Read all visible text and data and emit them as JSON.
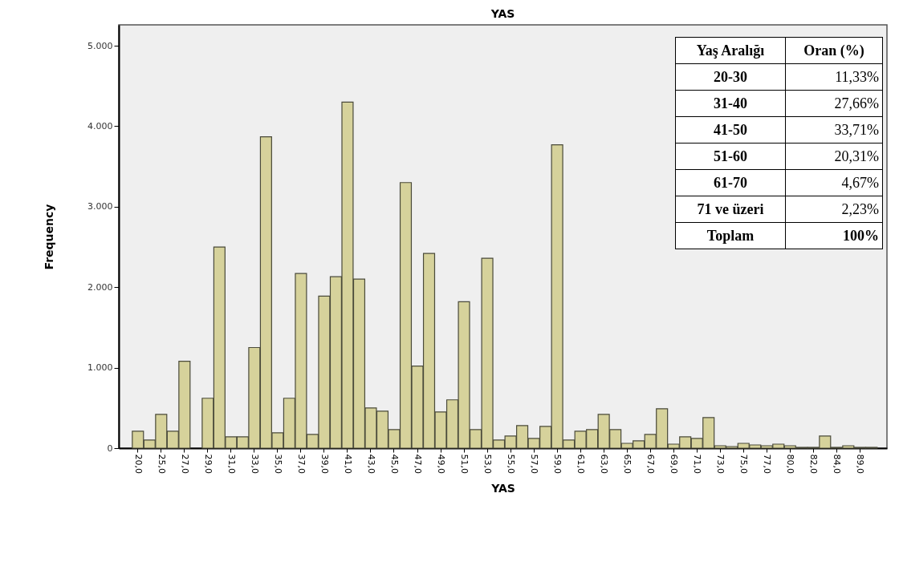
{
  "chart_data": [
    {
      "type": "bar",
      "title": "YAS",
      "xlabel": "YAS",
      "ylabel": "Frequency",
      "color": "#d6d29b",
      "categories": [
        "20,0",
        null,
        "25,0",
        null,
        "27,0",
        null,
        "29,0",
        null,
        "31,0",
        null,
        "33,0",
        null,
        "35,0",
        null,
        "37,0",
        null,
        "39,0",
        null,
        "41,0",
        null,
        "43,0",
        null,
        "45,0",
        null,
        "47,0",
        null,
        "49,0",
        null,
        "51,0",
        null,
        "53,0",
        null,
        "55,0",
        null,
        "57,0",
        null,
        "59,0",
        null,
        "61,0",
        null,
        "63,0",
        null,
        "65,0",
        null,
        "67,0",
        null,
        "69,0",
        null,
        "71,0",
        null,
        "73,0",
        null,
        "75,0",
        null,
        "77,0",
        null,
        "80,0",
        null,
        "82,0",
        null,
        "84,0",
        null,
        "89,0",
        null
      ],
      "values": [
        210,
        100,
        420,
        210,
        1080,
        null,
        620,
        2500,
        140,
        140,
        1250,
        3870,
        190,
        620,
        2170,
        170,
        1890,
        2130,
        4300,
        2100,
        500,
        460,
        230,
        3300,
        1020,
        2420,
        450,
        600,
        1820,
        230,
        2360,
        100,
        150,
        280,
        120,
        270,
        3770,
        100,
        210,
        230,
        420,
        230,
        60,
        90,
        170,
        490,
        50,
        140,
        120,
        380,
        30,
        20,
        60,
        40,
        30,
        50,
        30,
        10,
        10,
        150,
        10,
        30,
        10,
        10
      ],
      "ylim": [
        0,
        5260
      ],
      "yticks": [
        0,
        {
          "value": 1000,
          "label": "1.000"
        },
        {
          "value": 2000,
          "label": "2.000"
        },
        {
          "value": 3000,
          "label": "3.000"
        },
        {
          "value": 4000,
          "label": "4.000"
        },
        {
          "value": 5000,
          "label": "5.000"
        }
      ]
    },
    {
      "type": "other",
      "annotations": [
        "Yaş Aralığı",
        "Oran (%)"
      ],
      "categories": [
        "20-30",
        "31-40",
        "41-50",
        "51-60",
        "61-70",
        "71 ve üzeri",
        "Toplam"
      ],
      "values": [
        11.33,
        27.66,
        33.71,
        20.31,
        4.67,
        2.23,
        100
      ],
      "value_labels": [
        "11,33%",
        "27,66%",
        "33,71%",
        "20,31%",
        "4,67%",
        "2,23%",
        "100%"
      ]
    }
  ]
}
